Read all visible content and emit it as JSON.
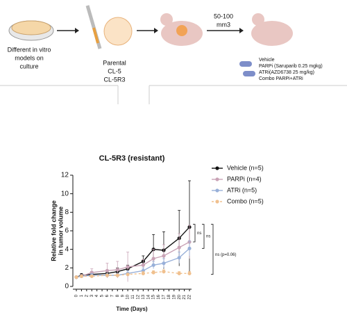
{
  "diagram": {
    "culture_label": [
      "Different in vitro",
      "models on",
      "culture"
    ],
    "cell_lines": [
      "Parental",
      "CL-5",
      "CL-5R3"
    ],
    "tumor_size": [
      "50-100",
      "mm3"
    ],
    "treatments": [
      "Vehicle",
      "PARPi (Saruparib 0.25 mgkg)",
      "ATRi(AZD6738 25 mg/kg)",
      "Combo PARPi+ATRi"
    ]
  },
  "chart_data": {
    "type": "line",
    "title": "CL-5R3 (resistant)",
    "x_label": "Time (Days)",
    "y_label": [
      "Relative fold change",
      "in tumor volume"
    ],
    "x": [
      0,
      1,
      3,
      6,
      8,
      10,
      13,
      15,
      17,
      20,
      22
    ],
    "xlim": [
      0,
      22
    ],
    "xticks": [
      0,
      1,
      2,
      3,
      4,
      5,
      6,
      7,
      8,
      9,
      10,
      11,
      12,
      13,
      14,
      15,
      16,
      17,
      18,
      19,
      20,
      21,
      22
    ],
    "ylim": [
      0,
      12
    ],
    "yticks": [
      0,
      2,
      4,
      6,
      8,
      10,
      12
    ],
    "legend": "right",
    "series": [
      {
        "name": "Vehicle (n=5)",
        "color": "#111111",
        "dashed": false,
        "values": [
          1.0,
          1.2,
          1.3,
          1.4,
          1.6,
          1.9,
          2.7,
          4.0,
          3.9,
          5.2,
          6.4
        ],
        "errors": [
          0.1,
          0.2,
          0.3,
          0.3,
          0.4,
          0.4,
          0.6,
          1.6,
          2.0,
          3.0,
          5.0
        ]
      },
      {
        "name": "PARPi (n=4)",
        "color": "#c9a3b6",
        "dashed": false,
        "values": [
          1.0,
          1.1,
          1.5,
          1.7,
          1.8,
          2.1,
          2.3,
          3.0,
          3.3,
          4.2,
          4.8
        ],
        "errors": [
          0.1,
          0.2,
          0.4,
          0.8,
          0.9,
          1.6,
          0.6,
          1.0,
          1.2,
          1.5,
          1.8
        ]
      },
      {
        "name": "ATRi (n=5)",
        "color": "#98b0d9",
        "dashed": false,
        "values": [
          1.0,
          1.1,
          1.2,
          1.2,
          1.2,
          1.4,
          1.7,
          2.3,
          2.5,
          3.1,
          4.1
        ],
        "errors": [
          0.1,
          0.1,
          0.2,
          0.2,
          0.2,
          0.3,
          0.3,
          0.4,
          0.5,
          0.6,
          0.8
        ]
      },
      {
        "name": "Combo (n=5)",
        "color": "#f0c08e",
        "dashed": true,
        "values": [
          1.0,
          1.1,
          1.1,
          1.2,
          1.2,
          1.3,
          1.4,
          1.5,
          1.6,
          1.4,
          1.4
        ],
        "errors": [
          0.1,
          0.1,
          0.1,
          0.1,
          0.1,
          0.1,
          0.2,
          0.2,
          0.2,
          0.2,
          0.2
        ]
      }
    ],
    "annotations": [
      "ns",
      "ns",
      "ns (p=0.06)"
    ]
  }
}
